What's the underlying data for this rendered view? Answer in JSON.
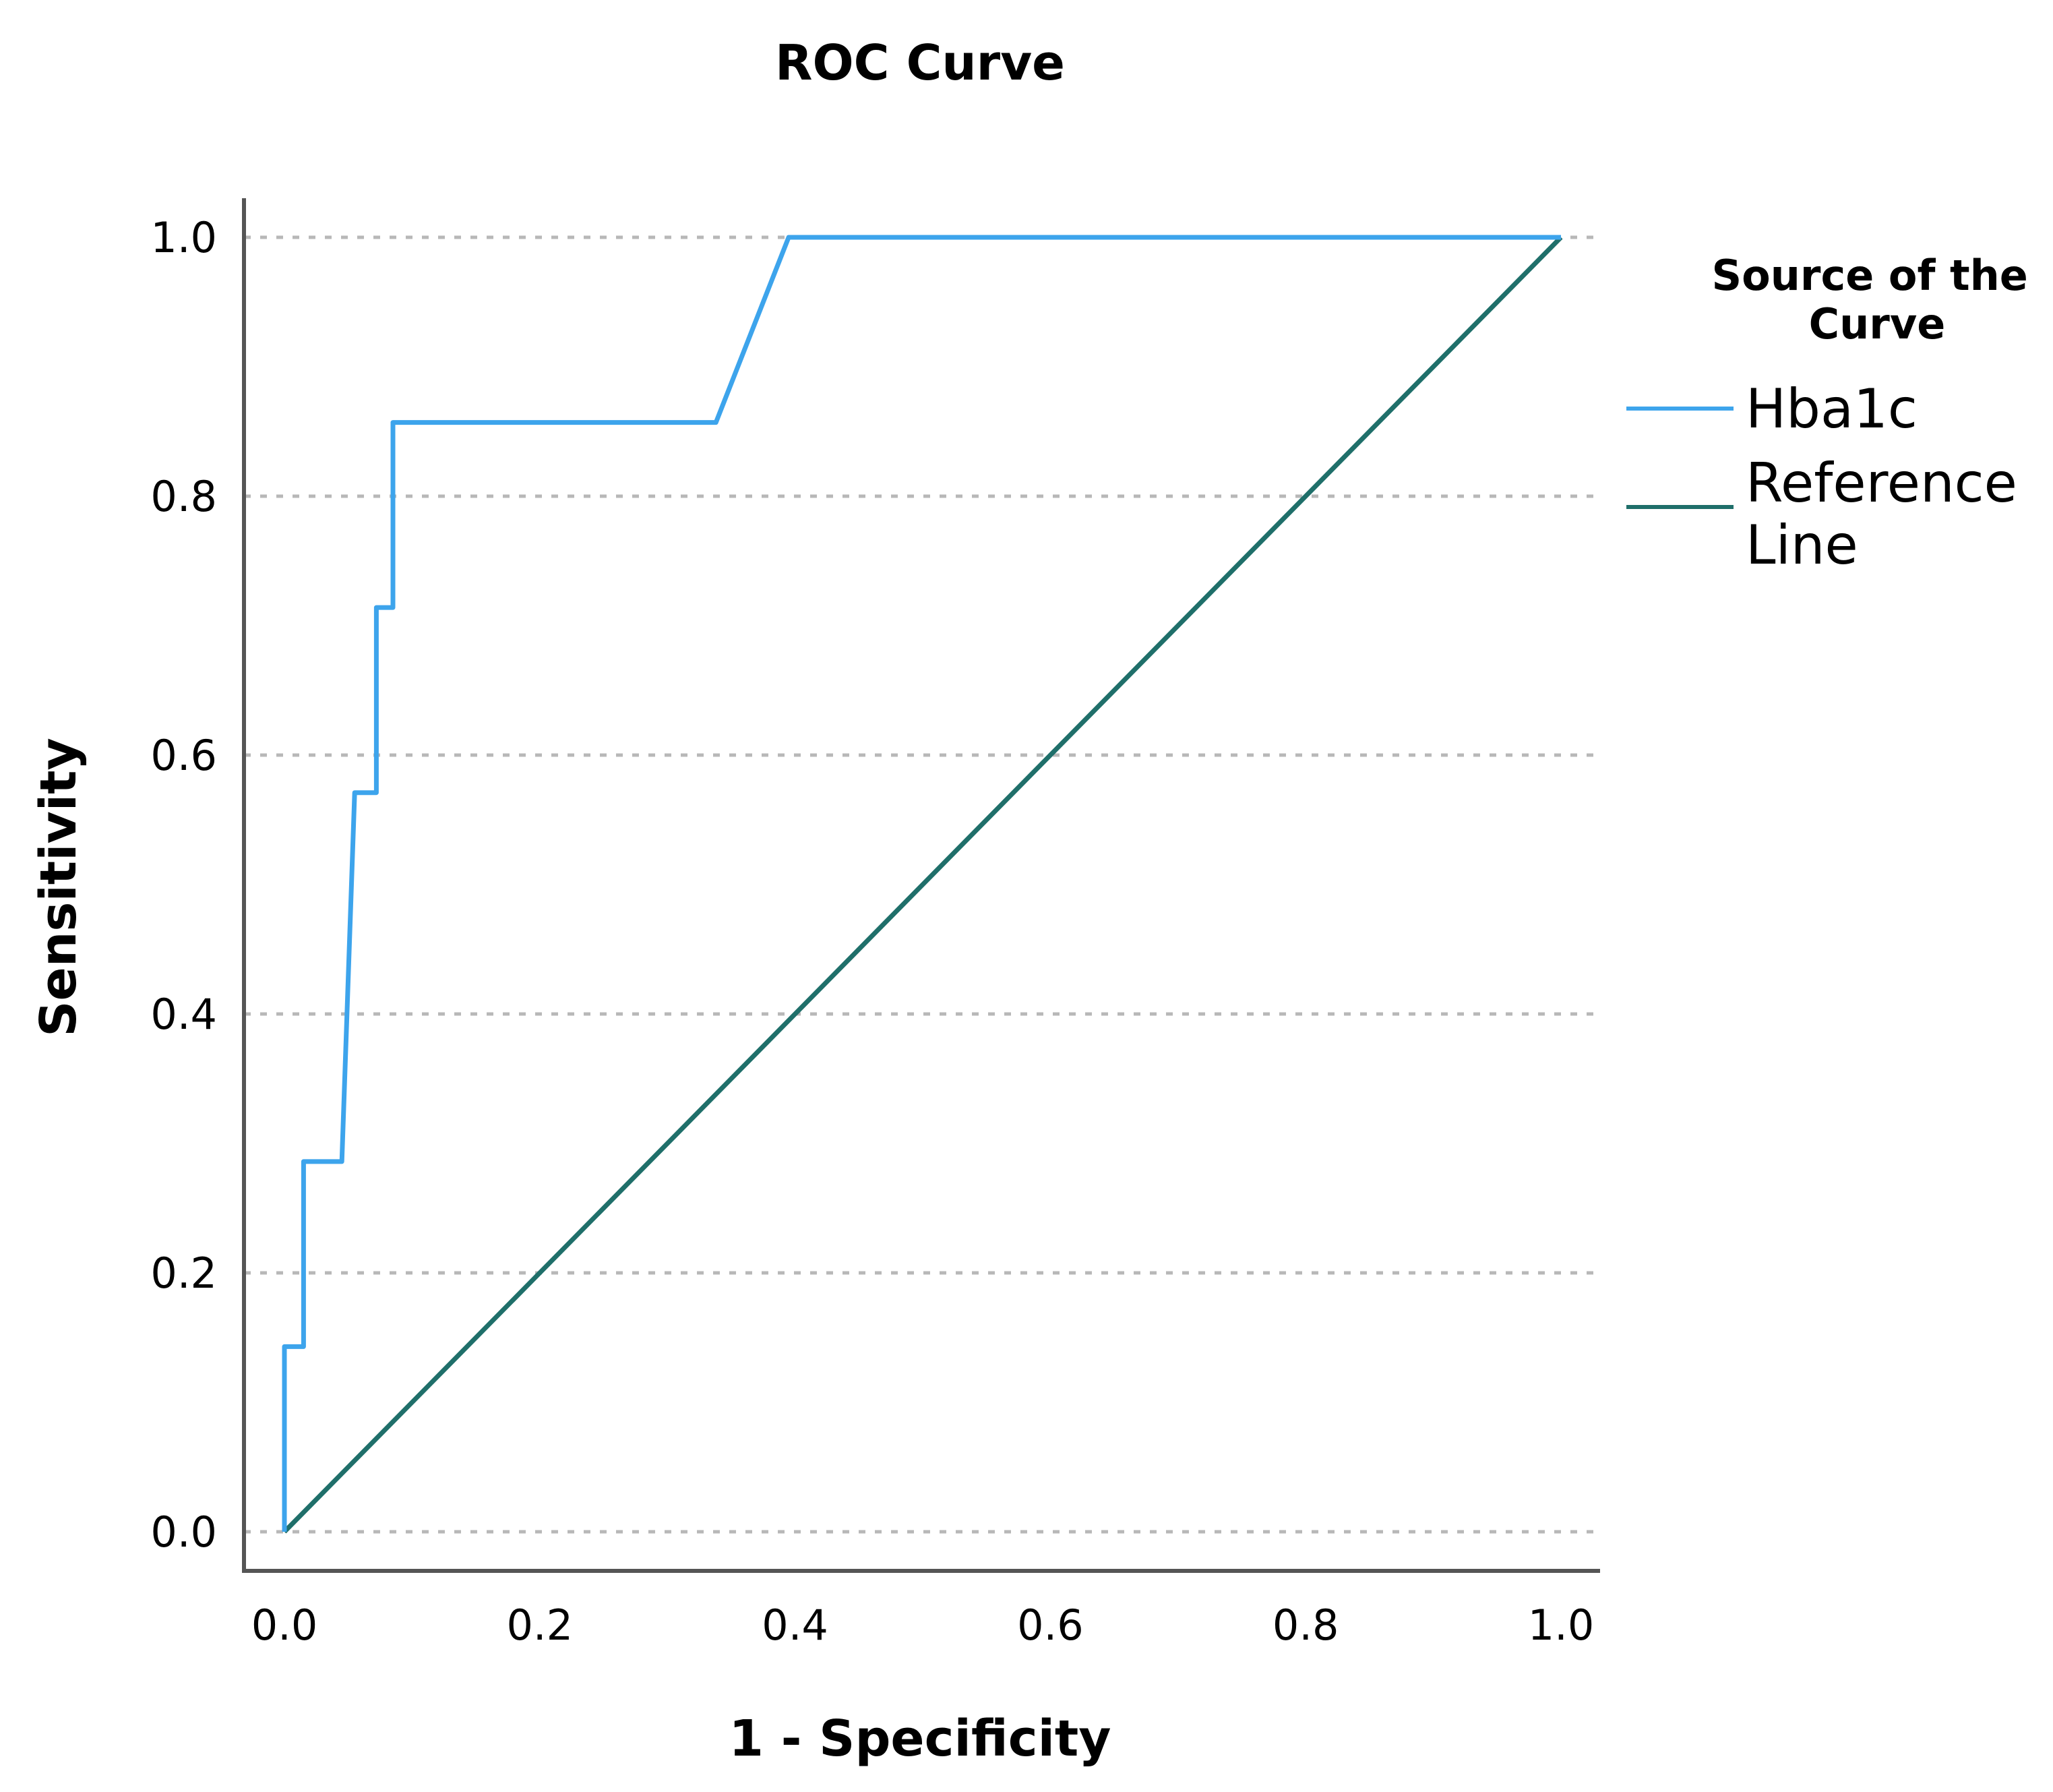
{
  "chart_data": {
    "type": "line",
    "title": "ROC Curve",
    "xlabel": "1 - Specificity",
    "ylabel": "Sensitivity",
    "xlim": [
      0,
      1
    ],
    "ylim": [
      0,
      1
    ],
    "x_ticks": [
      "0.0",
      "0.2",
      "0.4",
      "0.6",
      "0.8",
      "1.0"
    ],
    "y_ticks": [
      "0.0",
      "0.2",
      "0.4",
      "0.6",
      "0.8",
      "1.0"
    ],
    "grid": "horizontal dashed",
    "legend": {
      "title_lines": [
        "Source of the",
        "Curve"
      ],
      "placement": "right",
      "entries": [
        {
          "label_lines": [
            "Hba1c"
          ],
          "color": "#3da4ec"
        },
        {
          "label_lines": [
            "Reference",
            "Line"
          ],
          "color": "#1f6f6a"
        }
      ]
    },
    "series": [
      {
        "name": "Hba1c",
        "color": "#3da4ec",
        "x": [
          0.0,
          0.0,
          0.015,
          0.015,
          0.045,
          0.055,
          0.072,
          0.072,
          0.085,
          0.085,
          0.338,
          0.395,
          1.0
        ],
        "y": [
          0.0,
          0.143,
          0.143,
          0.286,
          0.286,
          0.571,
          0.571,
          0.714,
          0.714,
          0.857,
          0.857,
          1.0,
          1.0
        ]
      },
      {
        "name": "Reference Line",
        "color": "#1f6f6a",
        "x": [
          0.0,
          1.0
        ],
        "y": [
          0.0,
          1.0
        ]
      }
    ]
  }
}
